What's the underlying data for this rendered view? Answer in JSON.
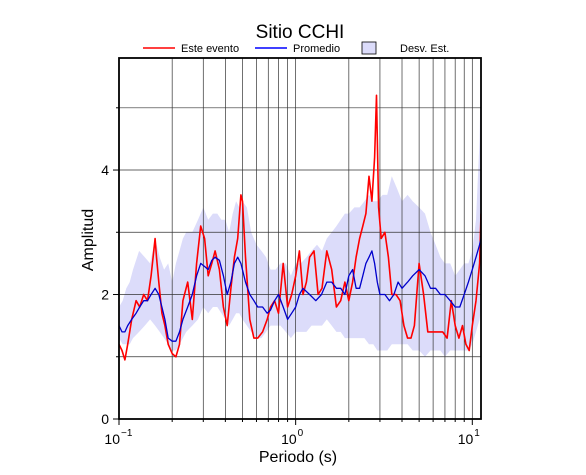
{
  "chart_data": {
    "type": "line",
    "title": "Sitio CCHI",
    "xlabel": "Periodo (s)",
    "ylabel": "Amplitud",
    "x_scale": "log",
    "xlim": [
      0.1,
      11.2
    ],
    "ylim": [
      0,
      5.8
    ],
    "y_ticks": [
      "0",
      "2",
      "4"
    ],
    "x_ticks": [
      {
        "value": 0.1,
        "base": "10",
        "exp": "−1"
      },
      {
        "value": 1,
        "base": "10",
        "exp": "0"
      },
      {
        "value": 10,
        "base": "10",
        "exp": "1"
      }
    ],
    "grid": true,
    "legend_position": "top",
    "legend": [
      {
        "label": "Este evento",
        "kind": "line",
        "color": "#ff0000"
      },
      {
        "label": "Promedio",
        "kind": "line",
        "color": "#0000ff"
      },
      {
        "label": "Desv. Est.",
        "kind": "band",
        "color": "#dcdcfa"
      }
    ],
    "series": [
      {
        "name": "Este evento",
        "color": "#ff0000",
        "x": [
          0.1,
          0.104,
          0.108,
          0.112,
          0.118,
          0.125,
          0.131,
          0.138,
          0.145,
          0.152,
          0.16,
          0.163,
          0.168,
          0.175,
          0.182,
          0.19,
          0.2,
          0.21,
          0.22,
          0.23,
          0.245,
          0.26,
          0.275,
          0.29,
          0.305,
          0.32,
          0.335,
          0.35,
          0.37,
          0.39,
          0.41,
          0.43,
          0.45,
          0.47,
          0.49,
          0.5,
          0.52,
          0.55,
          0.58,
          0.61,
          0.65,
          0.69,
          0.72,
          0.76,
          0.8,
          0.85,
          0.9,
          0.95,
          1.0,
          1.05,
          1.1,
          1.15,
          1.2,
          1.27,
          1.34,
          1.41,
          1.5,
          1.6,
          1.7,
          1.8,
          1.9,
          2.0,
          2.1,
          2.2,
          2.3,
          2.4,
          2.5,
          2.6,
          2.7,
          2.8,
          2.87,
          2.95,
          3.05,
          3.2,
          3.35,
          3.5,
          3.7,
          3.9,
          4.1,
          4.3,
          4.5,
          4.7,
          5.0,
          5.3,
          5.6,
          6.0,
          6.4,
          6.8,
          7.2,
          7.6,
          8.0,
          8.4,
          8.8,
          9.2,
          9.6,
          10.0,
          10.5,
          11.0,
          11.2
        ],
        "y": [
          1.2,
          1.1,
          0.95,
          1.2,
          1.6,
          1.9,
          1.8,
          2.0,
          1.9,
          2.3,
          2.9,
          2.6,
          2.2,
          1.7,
          1.5,
          1.2,
          1.05,
          1.0,
          1.2,
          1.9,
          2.2,
          1.6,
          2.5,
          3.1,
          2.9,
          2.3,
          2.5,
          2.7,
          2.4,
          1.8,
          1.5,
          2.1,
          2.6,
          2.9,
          3.6,
          3.5,
          2.6,
          1.6,
          1.3,
          1.3,
          1.4,
          1.6,
          1.8,
          1.9,
          1.7,
          2.5,
          1.8,
          2.0,
          2.3,
          2.7,
          2.0,
          2.2,
          2.6,
          2.7,
          2.0,
          2.1,
          2.7,
          2.4,
          1.8,
          1.9,
          2.2,
          1.9,
          2.2,
          2.6,
          2.9,
          3.1,
          3.3,
          3.9,
          3.5,
          4.2,
          5.2,
          3.4,
          2.9,
          3.0,
          2.6,
          2.0,
          2.0,
          1.9,
          1.5,
          1.3,
          1.3,
          1.5,
          2.5,
          2.0,
          1.4,
          1.4,
          1.4,
          1.4,
          1.3,
          1.9,
          1.5,
          1.3,
          1.5,
          1.2,
          1.1,
          1.5,
          1.9,
          2.5,
          3.3
        ]
      },
      {
        "name": "Promedio",
        "color": "#0000cc",
        "x": [
          0.1,
          0.104,
          0.108,
          0.112,
          0.118,
          0.125,
          0.131,
          0.138,
          0.145,
          0.152,
          0.16,
          0.168,
          0.175,
          0.182,
          0.19,
          0.2,
          0.21,
          0.22,
          0.23,
          0.245,
          0.26,
          0.275,
          0.29,
          0.305,
          0.32,
          0.335,
          0.35,
          0.37,
          0.39,
          0.41,
          0.43,
          0.45,
          0.47,
          0.49,
          0.52,
          0.55,
          0.58,
          0.61,
          0.65,
          0.69,
          0.72,
          0.76,
          0.8,
          0.85,
          0.9,
          0.95,
          1.0,
          1.05,
          1.1,
          1.2,
          1.3,
          1.4,
          1.5,
          1.6,
          1.7,
          1.8,
          1.9,
          2.0,
          2.1,
          2.2,
          2.3,
          2.4,
          2.5,
          2.6,
          2.7,
          2.8,
          2.9,
          3.0,
          3.2,
          3.4,
          3.6,
          3.8,
          4.0,
          4.3,
          4.6,
          5.0,
          5.4,
          5.8,
          6.2,
          6.6,
          7.0,
          7.5,
          8.0,
          8.5,
          9.0,
          9.5,
          10.0,
          10.5,
          11.0,
          11.2
        ],
        "y": [
          1.5,
          1.4,
          1.4,
          1.5,
          1.6,
          1.7,
          1.8,
          1.9,
          1.9,
          2.0,
          2.1,
          2.0,
          1.8,
          1.6,
          1.3,
          1.25,
          1.25,
          1.4,
          1.6,
          1.8,
          2.0,
          2.3,
          2.5,
          2.45,
          2.4,
          2.55,
          2.6,
          2.55,
          2.3,
          2.0,
          2.2,
          2.5,
          2.6,
          2.5,
          2.2,
          2.0,
          1.9,
          1.8,
          1.8,
          1.7,
          1.75,
          1.9,
          2.0,
          1.8,
          1.6,
          1.7,
          1.8,
          2.0,
          2.1,
          2.0,
          1.9,
          2.0,
          2.2,
          2.2,
          2.1,
          2.1,
          2.0,
          2.3,
          2.4,
          2.1,
          2.1,
          2.3,
          2.5,
          2.6,
          2.7,
          2.5,
          2.2,
          2.0,
          2.0,
          1.9,
          2.0,
          2.2,
          2.1,
          2.2,
          2.3,
          2.4,
          2.3,
          2.1,
          2.1,
          2.0,
          2.0,
          1.9,
          1.8,
          1.8,
          2.0,
          2.2,
          2.4,
          2.6,
          2.8,
          2.9
        ]
      }
    ],
    "std_band": {
      "name": "Desv. Est.",
      "color": "#dcdcfa",
      "x": [
        0.1,
        0.105,
        0.11,
        0.115,
        0.12,
        0.13,
        0.14,
        0.15,
        0.16,
        0.17,
        0.18,
        0.19,
        0.2,
        0.21,
        0.22,
        0.23,
        0.24,
        0.26,
        0.28,
        0.3,
        0.32,
        0.34,
        0.36,
        0.38,
        0.4,
        0.42,
        0.44,
        0.46,
        0.48,
        0.5,
        0.53,
        0.56,
        0.6,
        0.64,
        0.68,
        0.72,
        0.77,
        0.82,
        0.88,
        0.94,
        1.0,
        1.07,
        1.15,
        1.23,
        1.32,
        1.41,
        1.5,
        1.6,
        1.7,
        1.8,
        1.9,
        2.0,
        2.15,
        2.3,
        2.45,
        2.6,
        2.75,
        2.9,
        3.1,
        3.3,
        3.5,
        3.75,
        4.0,
        4.3,
        4.6,
        5.0,
        5.4,
        5.8,
        6.2,
        6.6,
        7.0,
        7.5,
        8.0,
        8.5,
        9.0,
        9.5,
        10.0,
        10.5,
        11.0,
        11.2
      ],
      "upper": [
        1.8,
        1.9,
        2.1,
        2.2,
        2.4,
        2.7,
        2.6,
        2.5,
        2.9,
        2.6,
        2.4,
        2.5,
        2.2,
        2.5,
        2.7,
        2.9,
        3.0,
        3.0,
        3.2,
        3.4,
        3.2,
        3.3,
        3.3,
        3.2,
        3.2,
        3.0,
        3.3,
        3.5,
        3.4,
        3.5,
        3.4,
        3.0,
        2.8,
        2.7,
        2.6,
        2.4,
        2.4,
        2.5,
        2.5,
        2.3,
        2.5,
        2.5,
        2.6,
        2.7,
        2.8,
        2.7,
        2.9,
        3.0,
        3.1,
        3.2,
        3.3,
        3.3,
        3.4,
        3.4,
        3.5,
        3.6,
        3.5,
        3.5,
        3.6,
        3.6,
        3.9,
        3.7,
        3.5,
        3.6,
        3.5,
        3.4,
        3.3,
        3.0,
        2.8,
        2.6,
        2.5,
        2.5,
        2.3,
        2.4,
        2.5,
        2.5,
        2.7,
        3.2,
        4.5,
        5.8
      ],
      "lower": [
        1.3,
        1.2,
        1.2,
        1.2,
        1.3,
        1.4,
        1.5,
        1.6,
        1.5,
        1.4,
        1.3,
        1.2,
        1.1,
        1.1,
        1.2,
        1.3,
        1.4,
        1.5,
        1.6,
        1.8,
        1.7,
        1.8,
        1.8,
        1.7,
        1.6,
        1.5,
        1.6,
        1.7,
        1.7,
        1.6,
        1.5,
        1.4,
        1.3,
        1.3,
        1.4,
        1.5,
        1.5,
        1.5,
        1.4,
        1.3,
        1.4,
        1.4,
        1.4,
        1.5,
        1.5,
        1.5,
        1.6,
        1.5,
        1.4,
        1.4,
        1.3,
        1.3,
        1.3,
        1.3,
        1.3,
        1.2,
        1.2,
        1.1,
        1.1,
        1.1,
        1.2,
        1.2,
        1.2,
        1.2,
        1.1,
        1.1,
        1.0,
        1.1,
        1.1,
        1.1,
        1.0,
        1.1,
        1.1,
        1.1,
        1.1,
        1.1,
        1.2,
        1.4,
        1.6,
        1.8
      ]
    }
  }
}
